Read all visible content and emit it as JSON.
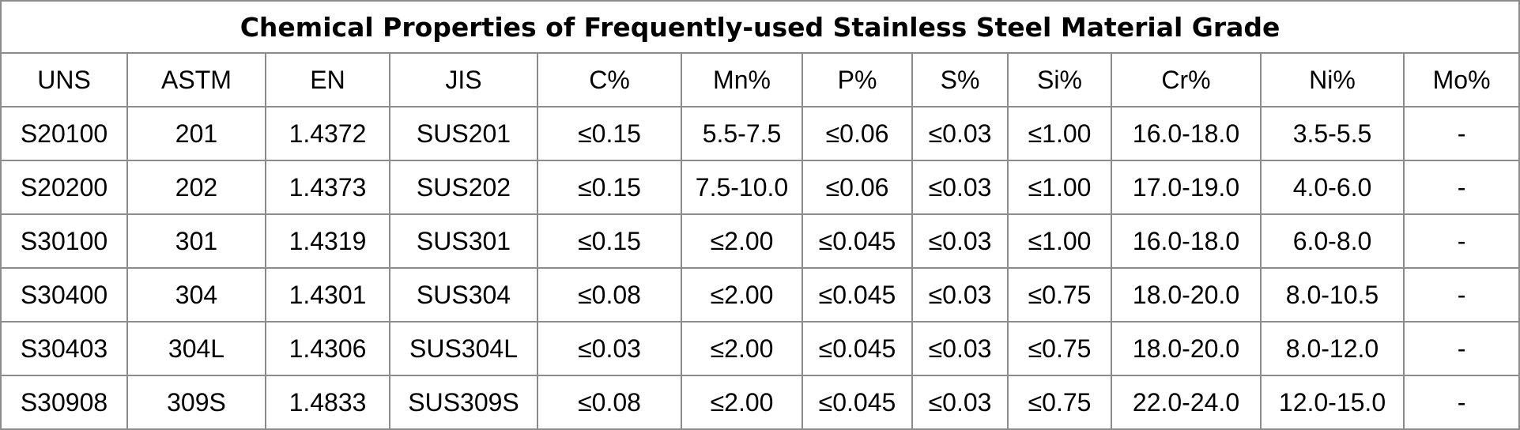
{
  "title": "Chemical Properties of Frequently-used Stainless Steel Material Grade",
  "columns": [
    "UNS",
    "ASTM",
    "EN",
    "JIS",
    "C%",
    "Mn%",
    "P%",
    "S%",
    "Si%",
    "Cr%",
    "Ni%",
    "Mo%"
  ],
  "rows": [
    [
      "S20100",
      "201",
      "1.4372",
      "SUS201",
      "≤0.15",
      "5.5-7.5",
      "≤0.06",
      "≤0.03",
      "≤1.00",
      "16.0-18.0",
      "3.5-5.5",
      "-"
    ],
    [
      "S20200",
      "202",
      "1.4373",
      "SUS202",
      "≤0.15",
      "7.5-10.0",
      "≤0.06",
      "≤0.03",
      "≤1.00",
      "17.0-19.0",
      "4.0-6.0",
      "-"
    ],
    [
      "S30100",
      "301",
      "1.4319",
      "SUS301",
      "≤0.15",
      "≤2.00",
      "≤0.045",
      "≤0.03",
      "≤1.00",
      "16.0-18.0",
      "6.0-8.0",
      "-"
    ],
    [
      "S30400",
      "304",
      "1.4301",
      "SUS304",
      "≤0.08",
      "≤2.00",
      "≤0.045",
      "≤0.03",
      "≤0.75",
      "18.0-20.0",
      "8.0-10.5",
      "-"
    ],
    [
      "S30403",
      "304L",
      "1.4306",
      "SUS304L",
      "≤0.03",
      "≤2.00",
      "≤0.045",
      "≤0.03",
      "≤0.75",
      "18.0-20.0",
      "8.0-12.0",
      "-"
    ],
    [
      "S30908",
      "309S",
      "1.4833",
      "SUS309S",
      "≤0.08",
      "≤2.00",
      "≤0.045",
      "≤0.03",
      "≤0.75",
      "22.0-24.0",
      "12.0-15.0",
      "-"
    ]
  ]
}
